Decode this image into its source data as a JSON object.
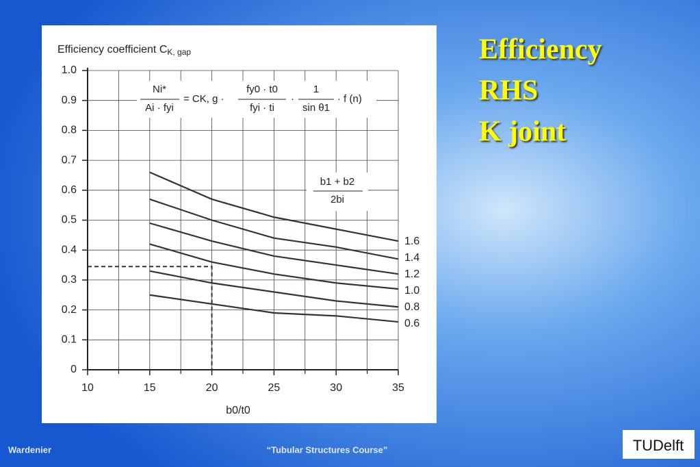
{
  "slide": {
    "title_lines": [
      "Efficiency",
      "RHS",
      "K joint"
    ],
    "footer_left": "Wardenier",
    "footer_center": "“Tubular Structures Course”",
    "logo": "TUDelft"
  },
  "chart_data": {
    "type": "line",
    "ylabel": "Efficiency coefficient C",
    "ylabel_subscript": "K, gap",
    "xlabel": "b0/t0",
    "formula": {
      "lhs_num": "Ni*",
      "lhs_den": "Ai · fyi",
      "mid": "= CK, g ·",
      "f1_num": "fy0 · t0",
      "f1_den": "fyi · ti",
      "f2_num": "1",
      "f2_den": "sin θ1",
      "tail": "· f (n)"
    },
    "legend_title": [
      "b1 + b2",
      "2bi"
    ],
    "x": [
      15,
      20,
      25,
      30,
      35
    ],
    "series": [
      {
        "name": "1.6",
        "color": "#3a3030",
        "values": [
          0.66,
          0.57,
          0.51,
          0.47,
          0.43
        ]
      },
      {
        "name": "1.4",
        "color": "#3a3030",
        "values": [
          0.57,
          0.5,
          0.44,
          0.41,
          0.37
        ]
      },
      {
        "name": "1.2",
        "color": "#3a3030",
        "values": [
          0.49,
          0.43,
          0.38,
          0.35,
          0.32
        ]
      },
      {
        "name": "1.0",
        "color": "#3a3030",
        "values": [
          0.42,
          0.36,
          0.32,
          0.29,
          0.27
        ]
      },
      {
        "name": "0.8",
        "color": "#3a3030",
        "values": [
          0.33,
          0.29,
          0.26,
          0.23,
          0.21
        ]
      },
      {
        "name": "0.6",
        "color": "#3a3030",
        "values": [
          0.25,
          0.22,
          0.19,
          0.18,
          0.16
        ]
      }
    ],
    "guide": {
      "x": 20,
      "y": 0.345
    },
    "xlim": [
      10,
      35
    ],
    "ylim": [
      0,
      1.0
    ],
    "xticks": [
      10,
      15,
      20,
      25,
      30,
      35
    ],
    "xminor": [
      12.5,
      17.5,
      22.5,
      27.5,
      32.5
    ],
    "yticks": [
      0,
      0.1,
      0.2,
      0.3,
      0.4,
      0.5,
      0.6,
      0.7,
      0.8,
      0.9,
      {
        "value": 1.0,
        "label": "1.0"
      }
    ],
    "grid": true
  }
}
